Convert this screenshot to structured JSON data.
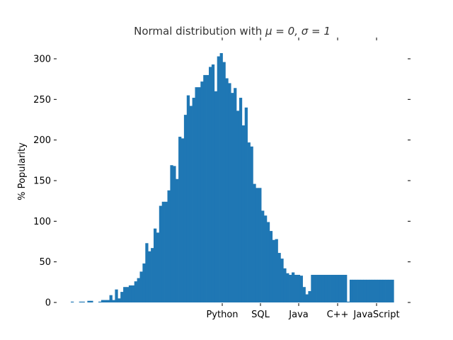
{
  "chart_data": {
    "type": "bar",
    "title_prefix": "Normal distribution with ",
    "title_math": "μ = 0, σ = 1",
    "title": "Normal distribution with μ = 0, σ = 1",
    "ylabel": "% Popularity",
    "xlabel": "",
    "ylim": [
      0,
      320
    ],
    "yticks": [
      0,
      50,
      100,
      150,
      200,
      250,
      300
    ],
    "grid": false,
    "bar_color": "#1f77b4",
    "series": [
      {
        "values": [
          1,
          0,
          0,
          1,
          1,
          0,
          2,
          2,
          0,
          0,
          1,
          3,
          3,
          3,
          9,
          3,
          16,
          5,
          13,
          19,
          19,
          21,
          21,
          26,
          30,
          38,
          48,
          73,
          63,
          67,
          91,
          86,
          119,
          124,
          124,
          138,
          169,
          168,
          152,
          204,
          202,
          231,
          255,
          242,
          252,
          265,
          265,
          272,
          280,
          280,
          290,
          293,
          260,
          303,
          307,
          296,
          276,
          270,
          258,
          264,
          236,
          252,
          218,
          240,
          197,
          192,
          146,
          141,
          141,
          113,
          107,
          99,
          88,
          77,
          78,
          61,
          54,
          42,
          36,
          34,
          37,
          34,
          34,
          33,
          19,
          10,
          14,
          34,
          34,
          34,
          34,
          34,
          34,
          34,
          34,
          34,
          34,
          34,
          34,
          34,
          1,
          28,
          28,
          28,
          28,
          28,
          28,
          28,
          28,
          28,
          28,
          28,
          28,
          28,
          28,
          28,
          28
        ]
      }
    ],
    "x_tick_labels": [
      "Python",
      "SQL",
      "Java",
      "C++",
      "JavaScript"
    ]
  }
}
